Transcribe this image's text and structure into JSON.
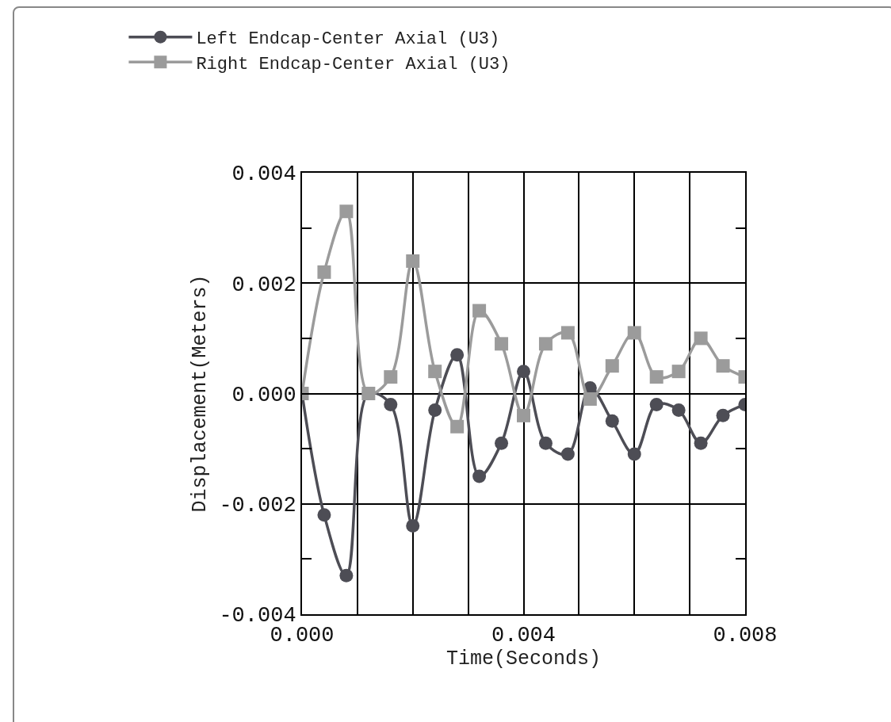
{
  "chart_data": {
    "type": "line",
    "xlabel": "Time(Seconds)",
    "ylabel": "Displacement(Meters)",
    "x": [
      0,
      0.0004,
      0.0008,
      0.0012,
      0.0016,
      0.002,
      0.0024,
      0.0028,
      0.0032,
      0.0036,
      0.004,
      0.0044,
      0.0048,
      0.0052,
      0.0056,
      0.006,
      0.0064,
      0.0068,
      0.0072,
      0.0076,
      0.008
    ],
    "series": [
      {
        "name": "Left Endcap-Center Axial (U3)",
        "color": "#4d4d55",
        "marker": "circle",
        "values": [
          0,
          -0.0022,
          -0.0033,
          0,
          -0.0002,
          -0.0024,
          -0.0003,
          0.0007,
          -0.0015,
          -0.0009,
          0.0004,
          -0.0009,
          -0.0011,
          0.0001,
          -0.0005,
          -0.0011,
          -0.0002,
          -0.0003,
          -0.0009,
          -0.0004,
          -0.0002
        ]
      },
      {
        "name": "Right Endcap-Center Axial (U3)",
        "color": "#9b9b9b",
        "marker": "square",
        "values": [
          0,
          0.0022,
          0.0033,
          0,
          0.0003,
          0.0024,
          0.0004,
          -0.0006,
          0.0015,
          0.0009,
          -0.0004,
          0.0009,
          0.0011,
          -0.0001,
          0.0005,
          0.0011,
          0.0003,
          0.0004,
          0.001,
          0.0005,
          0.0003
        ]
      }
    ],
    "xlim": [
      0,
      0.008
    ],
    "ylim": [
      -0.004,
      0.004
    ],
    "xticks": [
      {
        "value": 0,
        "label": "0.000"
      },
      {
        "value": 0.001,
        "label": null
      },
      {
        "value": 0.002,
        "label": null
      },
      {
        "value": 0.003,
        "label": null
      },
      0.004,
      {
        "value": 0.005,
        "label": null
      },
      {
        "value": 0.006,
        "label": null
      },
      {
        "value": 0.007,
        "label": null
      },
      0.008
    ],
    "yticks": [
      -0.004,
      {
        "value": -0.003,
        "label": null
      },
      -0.002,
      {
        "value": -0.001,
        "label": null
      },
      {
        "value": 0,
        "label": "0.000"
      },
      {
        "value": 0.001,
        "label": null
      },
      0.002,
      {
        "value": 0.003,
        "label": null
      },
      0.004
    ],
    "grid": true,
    "legend": "top left",
    "line_style": "solid"
  }
}
